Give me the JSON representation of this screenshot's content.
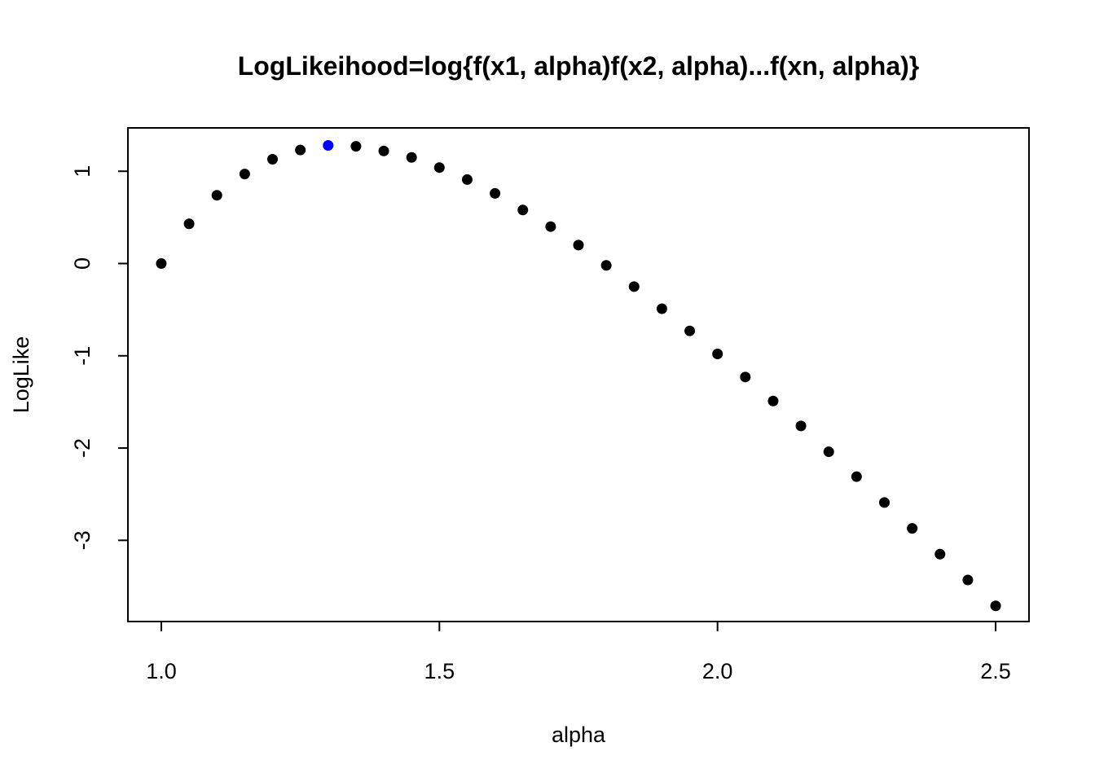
{
  "chart_data": {
    "type": "scatter",
    "title": "LogLikeihood=log{f(x1, alpha)f(x2, alpha)...f(xn, alpha)}",
    "xlabel": "alpha",
    "ylabel": "LogLike",
    "xlim": [
      0.94,
      2.56
    ],
    "ylim": [
      -3.88,
      1.47
    ],
    "x_ticks": [
      1.0,
      1.5,
      2.0,
      2.5
    ],
    "x_tick_labels": [
      "1.0",
      "1.5",
      "2.0",
      "2.5"
    ],
    "y_ticks": [
      1,
      0,
      -1,
      -2,
      -3
    ],
    "y_tick_labels": [
      "1",
      "0",
      "-1",
      "-2",
      "-3"
    ],
    "grid": false,
    "legend": "none",
    "series": [
      {
        "color": "#000000",
        "x": [
          1.0,
          1.05,
          1.1,
          1.15,
          1.2,
          1.25,
          1.35,
          1.4,
          1.45,
          1.5,
          1.55,
          1.6,
          1.65,
          1.7,
          1.75,
          1.8,
          1.85,
          1.9,
          1.95,
          2.0,
          2.05,
          2.1,
          2.15,
          2.2,
          2.25,
          2.3,
          2.35,
          2.4,
          2.45,
          2.5
        ],
        "y": [
          0.0,
          0.43,
          0.74,
          0.97,
          1.13,
          1.23,
          1.27,
          1.22,
          1.15,
          1.04,
          0.91,
          0.76,
          0.58,
          0.4,
          0.2,
          -0.02,
          -0.25,
          -0.49,
          -0.73,
          -0.98,
          -1.23,
          -1.49,
          -1.76,
          -2.04,
          -2.31,
          -2.59,
          -2.87,
          -3.15,
          -3.43,
          -3.71
        ]
      },
      {
        "color": "#0000ff",
        "x": [
          1.3
        ],
        "y": [
          1.28
        ]
      }
    ]
  }
}
